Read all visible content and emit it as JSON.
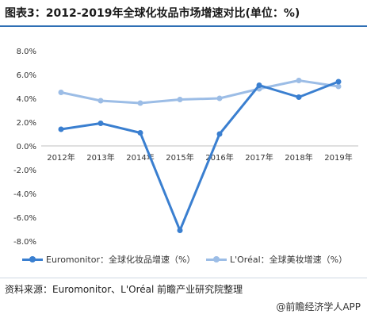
{
  "title": "图表3：2012-2019年全球化妆品市场增速对比(单位：%)",
  "chart_data": {
    "type": "line",
    "categories": [
      "2012年",
      "2013年",
      "2014年",
      "2015年",
      "2016年",
      "2017年",
      "2018年",
      "2019年"
    ],
    "series": [
      {
        "name": "Euromonitor：全球化妆品增速（%）",
        "values": [
          1.4,
          1.9,
          1.1,
          -7.1,
          1.0,
          5.1,
          4.1,
          5.4
        ],
        "color": "#3a7fd0"
      },
      {
        "name": "L'Oréal：全球美妆增速（%）",
        "values": [
          4.5,
          3.8,
          3.6,
          3.9,
          4.0,
          4.8,
          5.5,
          5.0
        ],
        "color": "#9cbde6"
      }
    ],
    "yticks": [
      "8.0%",
      "6.0%",
      "4.0%",
      "2.0%",
      "0.0%",
      "-2.0%",
      "-4.0%",
      "-6.0%",
      "-8.0%"
    ],
    "ylim": [
      -8,
      8
    ],
    "ystep": 2,
    "grid": false,
    "legend_position": "bottom"
  },
  "source": "资料来源：Euromonitor、L'Oréal 前瞻产业研究院整理",
  "brand": "@前瞻经济学人APP"
}
